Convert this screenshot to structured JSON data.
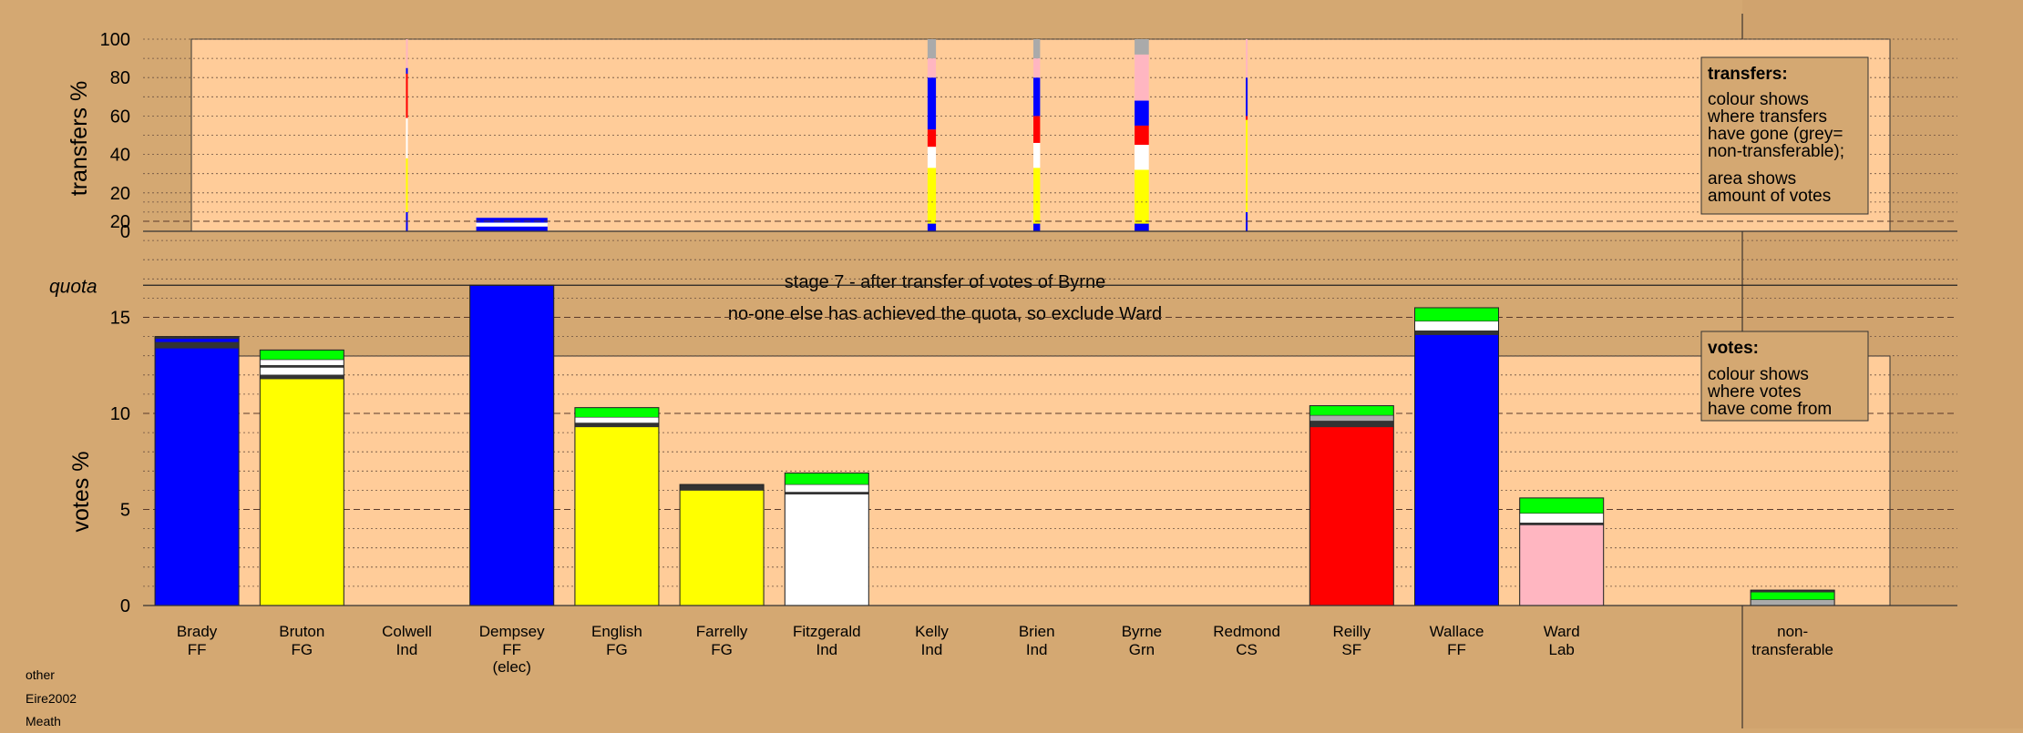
{
  "stage_title": "stage 7 - after transfer of votes of Byrne",
  "stage_note": "no-one else has achieved the quota, so exclude Ward",
  "meta": [
    "other",
    "Eire2002",
    "Meath"
  ],
  "colors": {
    "page_bg": "#d4a872",
    "plot_bg": "#ffcc99",
    "FF": "#0000ff",
    "FG": "#ffff00",
    "Ind": "#ffffff",
    "SF": "#ff0000",
    "Lab": "#ffb6c1",
    "other": "#00ff00",
    "nontransferable": "#aaaaaa",
    "dark": "#333333"
  },
  "transfers_legend": {
    "heading": "transfers:",
    "lines": [
      "colour shows",
      "where transfers",
      "have gone (grey=",
      "non-transferable);",
      "area shows",
      "amount of votes"
    ]
  },
  "votes_legend": {
    "heading": "votes:",
    "lines": [
      "colour shows",
      "where votes",
      "have come from"
    ]
  },
  "chart_data": [
    {
      "type": "bar",
      "name": "transfers",
      "ylabel": "transfers %",
      "ylim": [
        0,
        100
      ],
      "yticks": [
        0,
        20,
        40,
        60,
        80,
        100
      ],
      "grid": "dotted every 10",
      "note": "stacked percentage bars; bar width proportional to amount of votes",
      "bars": [
        {
          "slot": 2.5,
          "width": 0.02,
          "segments": [
            {
              "color": "FF",
              "value": 10
            },
            {
              "color": "FG",
              "value": 28
            },
            {
              "color": "Ind",
              "value": 21
            },
            {
              "color": "SF",
              "value": 23
            },
            {
              "color": "FF",
              "value": 3
            },
            {
              "color": "Lab",
              "value": 15
            }
          ]
        },
        {
          "slot": 3.5,
          "width": 0.85,
          "segments": [
            {
              "color": "FF",
              "value": 2.5
            },
            {
              "color": "Ind",
              "value": 2
            },
            {
              "color": "FF",
              "value": 2.5
            }
          ]
        },
        {
          "slot": 7.5,
          "width": 0.1,
          "segments": [
            {
              "color": "FF",
              "value": 4
            },
            {
              "color": "FG",
              "value": 29
            },
            {
              "color": "Ind",
              "value": 11
            },
            {
              "color": "SF",
              "value": 9
            },
            {
              "color": "FF",
              "value": 27
            },
            {
              "color": "Lab",
              "value": 10
            },
            {
              "color": "nontransferable",
              "value": 10
            }
          ]
        },
        {
          "slot": 8.5,
          "width": 0.08,
          "segments": [
            {
              "color": "FF",
              "value": 4
            },
            {
              "color": "FG",
              "value": 29
            },
            {
              "color": "Ind",
              "value": 13
            },
            {
              "color": "SF",
              "value": 14
            },
            {
              "color": "FF",
              "value": 20
            },
            {
              "color": "Lab",
              "value": 10
            },
            {
              "color": "nontransferable",
              "value": 10
            }
          ]
        },
        {
          "slot": 9.5,
          "width": 0.17,
          "segments": [
            {
              "color": "FF",
              "value": 4
            },
            {
              "color": "FG",
              "value": 28
            },
            {
              "color": "Ind",
              "value": 13
            },
            {
              "color": "SF",
              "value": 10
            },
            {
              "color": "FF",
              "value": 13
            },
            {
              "color": "Lab",
              "value": 24
            },
            {
              "color": "nontransferable",
              "value": 8
            }
          ]
        },
        {
          "slot": 10.5,
          "width": 0.02,
          "segments": [
            {
              "color": "FF",
              "value": 10
            },
            {
              "color": "FG",
              "value": 48
            },
            {
              "color": "SF",
              "value": 2
            },
            {
              "color": "FF",
              "value": 20
            },
            {
              "color": "Lab",
              "value": 20
            }
          ]
        }
      ]
    },
    {
      "type": "bar",
      "name": "votes",
      "ylabel": "votes %",
      "ylim": [
        0,
        22
      ],
      "yticks": [
        0,
        5,
        10,
        15,
        20
      ],
      "quota": 16.67,
      "quota_label": "quota",
      "grid": "dotted every 1, dashed every 5",
      "categories": [
        {
          "name": "Brady",
          "party": "FF",
          "extra": ""
        },
        {
          "name": "Bruton",
          "party": "FG",
          "extra": ""
        },
        {
          "name": "Colwell",
          "party": "Ind",
          "extra": ""
        },
        {
          "name": "Dempsey",
          "party": "FF",
          "extra": "(elec)"
        },
        {
          "name": "English",
          "party": "FG",
          "extra": ""
        },
        {
          "name": "Farrelly",
          "party": "FG",
          "extra": ""
        },
        {
          "name": "Fitzgerald",
          "party": "Ind",
          "extra": ""
        },
        {
          "name": "Kelly",
          "party": "Ind",
          "extra": ""
        },
        {
          "name": "Brien",
          "party": "Ind",
          "extra": ""
        },
        {
          "name": "Byrne",
          "party": "Grn",
          "extra": ""
        },
        {
          "name": "Redmond",
          "party": "CS",
          "extra": ""
        },
        {
          "name": "Reilly",
          "party": "SF",
          "extra": ""
        },
        {
          "name": "Wallace",
          "party": "FF",
          "extra": ""
        },
        {
          "name": "Ward",
          "party": "Lab",
          "extra": ""
        },
        {
          "name": "non-",
          "party": "transferable",
          "extra": ""
        }
      ],
      "stacks": [
        [
          {
            "color": "FF",
            "value": 13.4
          },
          {
            "color": "dark",
            "value": 0.3
          },
          {
            "color": "FF",
            "value": 0.2
          },
          {
            "color": "dark",
            "value": 0.1
          }
        ],
        [
          {
            "color": "FG",
            "value": 11.8
          },
          {
            "color": "dark",
            "value": 0.2
          },
          {
            "color": "Ind",
            "value": 0.4
          },
          {
            "color": "dark",
            "value": 0.1
          },
          {
            "color": "Ind",
            "value": 0.3
          },
          {
            "color": "other",
            "value": 0.5
          }
        ],
        [],
        [
          {
            "color": "FF",
            "value": 16.67
          }
        ],
        [
          {
            "color": "FG",
            "value": 9.3
          },
          {
            "color": "dark",
            "value": 0.2
          },
          {
            "color": "Ind",
            "value": 0.3
          },
          {
            "color": "other",
            "value": 0.5
          }
        ],
        [
          {
            "color": "FG",
            "value": 6.0
          },
          {
            "color": "dark",
            "value": 0.3
          }
        ],
        [
          {
            "color": "Ind",
            "value": 5.8
          },
          {
            "color": "dark",
            "value": 0.1
          },
          {
            "color": "Ind",
            "value": 0.4
          },
          {
            "color": "other",
            "value": 0.6
          }
        ],
        [],
        [],
        [],
        [],
        [
          {
            "color": "SF",
            "value": 9.3
          },
          {
            "color": "dark",
            "value": 0.3
          },
          {
            "color": "nontransferable",
            "value": 0.3
          },
          {
            "color": "other",
            "value": 0.5
          }
        ],
        [
          {
            "color": "FF",
            "value": 14.1
          },
          {
            "color": "dark",
            "value": 0.2
          },
          {
            "color": "Ind",
            "value": 0.5
          },
          {
            "color": "other",
            "value": 0.7
          }
        ],
        [
          {
            "color": "Lab",
            "value": 4.2
          },
          {
            "color": "dark",
            "value": 0.1
          },
          {
            "color": "Ind",
            "value": 0.5
          },
          {
            "color": "other",
            "value": 0.8
          }
        ],
        [
          {
            "color": "nontransferable",
            "value": 0.3
          },
          {
            "color": "other",
            "value": 0.4
          },
          {
            "color": "dark",
            "value": 0.1
          }
        ]
      ]
    }
  ]
}
